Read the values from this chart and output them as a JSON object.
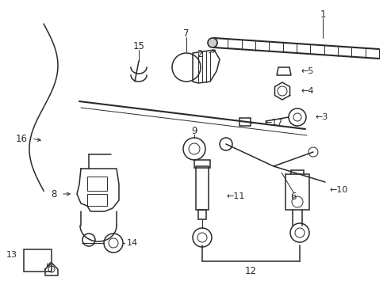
{
  "bg_color": "#ffffff",
  "line_color": "#2a2a2a",
  "figsize": [
    4.89,
    3.6
  ],
  "dpi": 100,
  "label_fs": 8.5,
  "lw_main": 1.1,
  "lw_thin": 0.7
}
